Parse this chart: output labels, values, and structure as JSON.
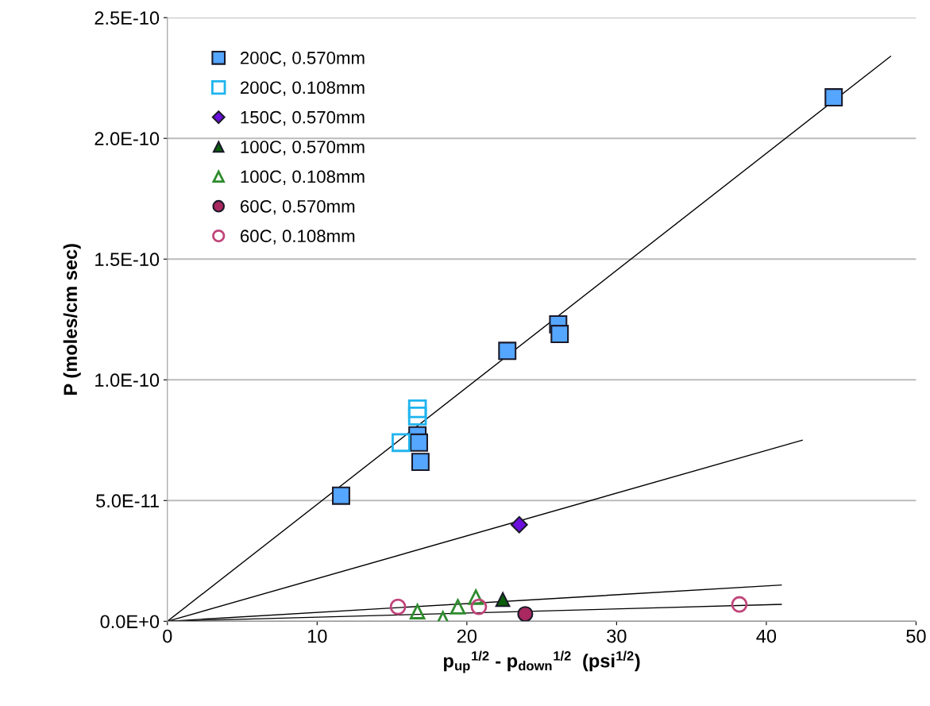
{
  "chart_data": {
    "type": "scatter",
    "xlabel": "p$_{up}$$^{1/2}$ - p$_{down}$$^{1/2}$  (psi$^{1/2}$)",
    "ylabel": "P (moles/cm sec)",
    "xlim": [
      0,
      50
    ],
    "xticks": [
      0,
      10,
      20,
      30,
      40,
      50
    ],
    "ylim": [
      0,
      2.5e-10
    ],
    "yticks": [
      {
        "value": 0,
        "label": "0.0E+0"
      },
      {
        "value": 5e-11,
        "label": "5.0E-11"
      },
      {
        "value": 1e-10,
        "label": "1.0E-10"
      },
      {
        "value": 1.5e-10,
        "label": "1.5E-10"
      },
      {
        "value": 2e-10,
        "label": "2.0E-10"
      },
      {
        "value": 2.5e-10,
        "label": "2.5E-10"
      }
    ],
    "grid": "y",
    "legend": "top left",
    "series": [
      {
        "name": "200C, 0.570mm",
        "color": "#55a6ff",
        "marker": "square",
        "x": [
          11.6,
          16.7,
          16.8,
          16.9,
          22.7,
          26.1,
          26.2,
          44.5
        ],
        "values": [
          5.2e-11,
          7.7e-11,
          7.4e-11,
          6.6e-11,
          1.12e-10,
          1.23e-10,
          1.19e-10,
          2.17e-10
        ]
      },
      {
        "name": "200C, 0.108mm",
        "color": "#1fb4ee",
        "marker": "square-open",
        "x": [
          15.6,
          16.7,
          16.7
        ],
        "values": [
          7.4e-11,
          8.5e-11,
          8.8e-11
        ]
      },
      {
        "name": "150C, 0.570mm",
        "color": "#6a0fdc",
        "marker": "diamond",
        "x": [
          23.5
        ],
        "values": [
          4e-11
        ]
      },
      {
        "name": "100C, 0.570mm",
        "color": "#0b5e0b",
        "marker": "triangle",
        "x": [
          22.4
        ],
        "values": [
          9e-12
        ]
      },
      {
        "name": "100C, 0.108mm",
        "color": "#2e8b2e",
        "marker": "triangle-open",
        "x": [
          16.7,
          18.4,
          19.4,
          20.6
        ],
        "values": [
          4e-12,
          1e-12,
          6e-12,
          1e-11
        ]
      },
      {
        "name": "60C, 0.570mm",
        "color": "#a8285f",
        "marker": "circle",
        "x": [
          23.9
        ],
        "values": [
          3e-12
        ]
      },
      {
        "name": "60C, 0.108mm",
        "color": "#c0457a",
        "marker": "circle-open",
        "x": [
          15.4,
          20.8,
          38.2
        ],
        "values": [
          6e-12,
          6e-12,
          7e-12
        ]
      },
      {
        "type": "line",
        "color": "#000000",
        "marker": "none",
        "x": [
          0,
          48.3
        ],
        "values": [
          0,
          2.34e-10
        ]
      },
      {
        "type": "line",
        "color": "#000000",
        "marker": "none",
        "x": [
          0,
          42.4
        ],
        "values": [
          0,
          7.5e-11
        ]
      },
      {
        "type": "line",
        "color": "#000000",
        "marker": "none",
        "x": [
          0,
          41.0
        ],
        "values": [
          0,
          1.5e-11
        ]
      },
      {
        "type": "line",
        "color": "#000000",
        "marker": "none",
        "x": [
          0,
          41.0
        ],
        "values": [
          0,
          7e-12
        ]
      }
    ]
  }
}
